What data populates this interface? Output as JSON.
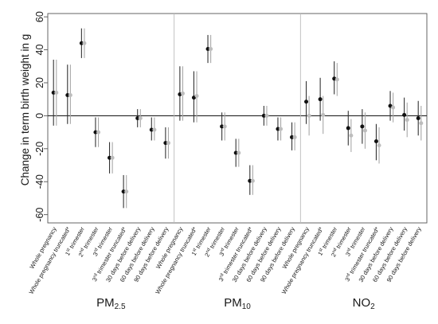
{
  "chart_data": {
    "type": "scatter",
    "subtype": "coefficient-plot-with-error-bars",
    "ylabel": "Change in term birth weight in g",
    "ylim": [
      -65,
      62
    ],
    "yticks": [
      -60,
      -40,
      -20,
      0,
      20,
      40,
      60
    ],
    "grid": false,
    "reference_line_y": 0,
    "colors": {
      "primary_point": "#111111",
      "primary_bar": "#333333",
      "secondary_point": "#bdbdbd",
      "secondary_bar": "#a8a8a8",
      "frame": "#555555",
      "zero_line": "#222222",
      "separator": "#bbbbbb"
    },
    "groups": [
      {
        "label": "PM2.5",
        "label_main": "PM",
        "label_sub": "2.5",
        "categories": [
          {
            "label": "Whole pregnancy",
            "estimate": 14,
            "ci": [
              -6,
              34
            ],
            "alt_estimate": 14,
            "alt_ci": [
              -6,
              34
            ]
          },
          {
            "label": "Whole pregnancy truncated*",
            "estimate": 12.5,
            "ci": [
              -5,
              31
            ],
            "alt_estimate": 12.5,
            "alt_ci": [
              -5,
              31
            ]
          },
          {
            "label": "1st trimester",
            "base": "1",
            "sup": "st",
            "rest": " trimester",
            "estimate": 44,
            "ci": [
              35,
              53
            ],
            "alt_estimate": 44,
            "alt_ci": [
              35,
              53
            ]
          },
          {
            "label": "2nd trimester",
            "base": "2",
            "sup": "nd",
            "rest": " trimester",
            "estimate": -10,
            "ci": [
              -19,
              -1
            ],
            "alt_estimate": -10,
            "alt_ci": [
              -19,
              -1
            ]
          },
          {
            "label": "3rd trimester",
            "base": "3",
            "sup": "rd",
            "rest": " trimester",
            "estimate": -25.5,
            "ci": [
              -35,
              -16
            ],
            "alt_estimate": -25.5,
            "alt_ci": [
              -35,
              -16
            ]
          },
          {
            "label": "3rd trimester truncated*",
            "base": "3",
            "sup": "rd",
            "rest": " trimester truncated*",
            "estimate": -46,
            "ci": [
              -56,
              -36
            ],
            "alt_estimate": -46,
            "alt_ci": [
              -56,
              -36
            ]
          },
          {
            "label": "30 days before delivery",
            "estimate": -1.5,
            "ci": [
              -7,
              4
            ],
            "alt_estimate": -1.5,
            "alt_ci": [
              -7,
              4
            ]
          },
          {
            "label": "60 days before delivery",
            "estimate": -8.5,
            "ci": [
              -15,
              -1
            ],
            "alt_estimate": -8.5,
            "alt_ci": [
              -15,
              -1
            ]
          },
          {
            "label": "90 days before delivery",
            "estimate": -16.5,
            "ci": [
              -26,
              -7
            ],
            "alt_estimate": -16.5,
            "alt_ci": [
              -26,
              -7
            ]
          }
        ]
      },
      {
        "label": "PM10",
        "label_main": "PM",
        "label_sub": "10",
        "categories": [
          {
            "label": "Whole pregnancy",
            "estimate": 13,
            "ci": [
              -3,
              30
            ],
            "alt_estimate": 13.5,
            "alt_ci": [
              -3,
              30
            ]
          },
          {
            "label": "Whole pregnancy truncated*",
            "estimate": 11,
            "ci": [
              -4,
              27
            ],
            "alt_estimate": 12,
            "alt_ci": [
              -4,
              27
            ]
          },
          {
            "label": "1st trimester",
            "base": "1",
            "sup": "st",
            "rest": " trimester",
            "estimate": 40.5,
            "ci": [
              32,
              49
            ],
            "alt_estimate": 40.5,
            "alt_ci": [
              32,
              49
            ]
          },
          {
            "label": "2nd trimester",
            "base": "2",
            "sup": "nd",
            "rest": " trimester",
            "estimate": -6.5,
            "ci": [
              -15,
              2
            ],
            "alt_estimate": -6.5,
            "alt_ci": [
              -15,
              2
            ]
          },
          {
            "label": "3rd trimester",
            "base": "3",
            "sup": "rd",
            "rest": " trimester",
            "estimate": -22.5,
            "ci": [
              -31,
              -14
            ],
            "alt_estimate": -22.5,
            "alt_ci": [
              -31,
              -14
            ]
          },
          {
            "label": "3rd trimester truncated*",
            "base": "3",
            "sup": "rd",
            "rest": " trimester truncated*",
            "estimate": -39.5,
            "ci": [
              -48,
              -30
            ],
            "alt_estimate": -39.5,
            "alt_ci": [
              -48,
              -30
            ]
          },
          {
            "label": "30 days before delivery",
            "estimate": 0,
            "ci": [
              -6,
              6
            ],
            "alt_estimate": 0,
            "alt_ci": [
              -6,
              6
            ]
          },
          {
            "label": "60 days before delivery",
            "estimate": -8,
            "ci": [
              -15,
              -1
            ],
            "alt_estimate": -8,
            "alt_ci": [
              -15,
              -1
            ]
          },
          {
            "label": "90 days before delivery",
            "estimate": -13,
            "ci": [
              -21,
              -4
            ],
            "alt_estimate": -13,
            "alt_ci": [
              -21,
              -4
            ]
          }
        ]
      },
      {
        "label": "NO2",
        "label_main": "NO",
        "label_sub": "2",
        "categories": [
          {
            "label": "Whole pregnancy",
            "estimate": 8.5,
            "ci": [
              -5,
              21
            ],
            "alt_estimate": 0,
            "alt_ci": [
              -12,
              12
            ]
          },
          {
            "label": "Whole pregnancy truncated*",
            "estimate": 10,
            "ci": [
              -3,
              23
            ],
            "alt_estimate": 0.5,
            "alt_ci": [
              -11,
              12
            ]
          },
          {
            "label": "1st trimester",
            "base": "1",
            "sup": "st",
            "rest": " trimester",
            "estimate": 22.5,
            "ci": [
              13,
              33
            ],
            "alt_estimate": 22,
            "alt_ci": [
              12,
              32
            ]
          },
          {
            "label": "2nd trimester",
            "base": "2",
            "sup": "nd",
            "rest": " trimester",
            "estimate": -7.5,
            "ci": [
              -18,
              3
            ],
            "alt_estimate": -12,
            "alt_ci": [
              -22,
              -2
            ]
          },
          {
            "label": "3rd trimester",
            "base": "3",
            "sup": "rd",
            "rest": " trimester",
            "estimate": -6.5,
            "ci": [
              -17,
              4
            ],
            "alt_estimate": -9,
            "alt_ci": [
              -20,
              2
            ]
          },
          {
            "label": "3rd trimester truncated*",
            "base": "3",
            "sup": "rd",
            "rest": " trimester truncated*",
            "estimate": -15.5,
            "ci": [
              -27,
              -5
            ],
            "alt_estimate": -18,
            "alt_ci": [
              -29,
              -7
            ]
          },
          {
            "label": "30 days before delivery",
            "estimate": 6,
            "ci": [
              -3,
              15
            ],
            "alt_estimate": 5,
            "alt_ci": [
              -4,
              14
            ]
          },
          {
            "label": "60 days before delivery",
            "estimate": 0.5,
            "ci": [
              -9,
              11
            ],
            "alt_estimate": -2.5,
            "alt_ci": [
              -13,
              8
            ]
          },
          {
            "label": "90 days before delivery",
            "estimate": -1.5,
            "ci": [
              -12,
              9
            ],
            "alt_estimate": -4.5,
            "alt_ci": [
              -15,
              6
            ]
          }
        ]
      }
    ]
  }
}
